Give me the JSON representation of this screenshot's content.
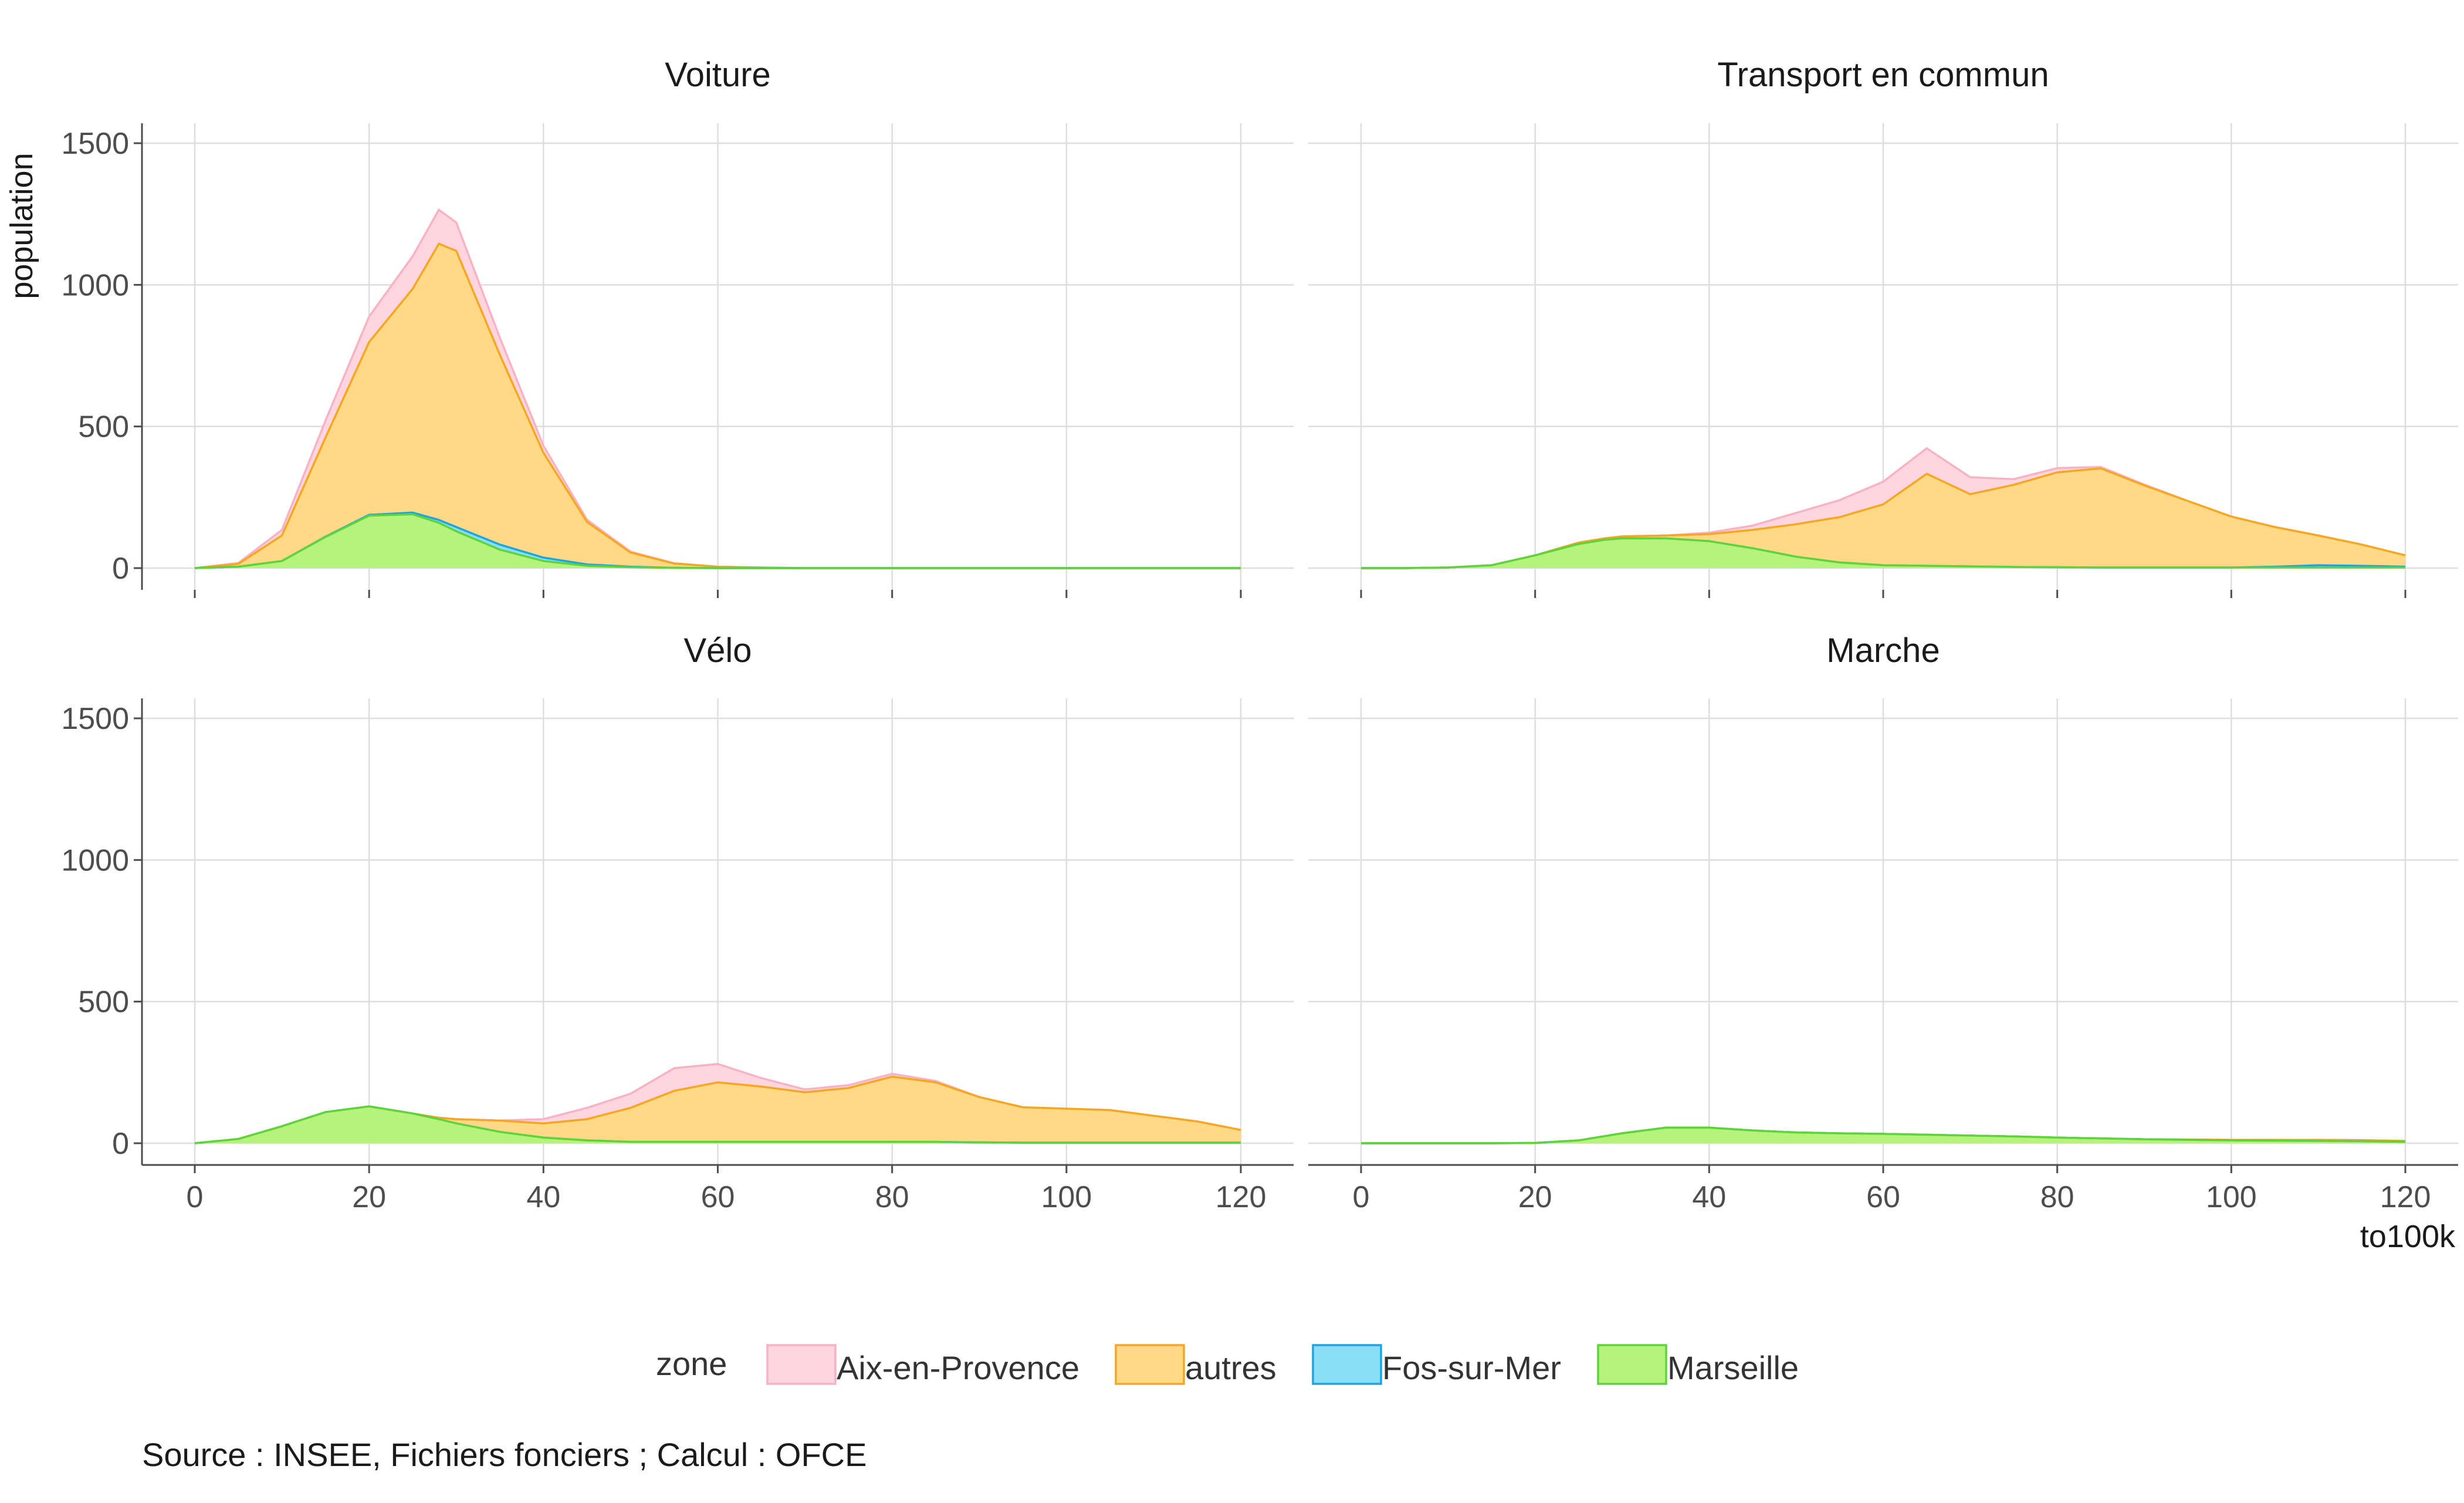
{
  "chart_data": {
    "type": "area",
    "stacked": true,
    "facets": [
      "Voiture",
      "Transport en commun",
      "Vélo",
      "Marche"
    ],
    "xlabel": "to100k",
    "ylabel": "population",
    "xlim": [
      0,
      120
    ],
    "ylim": [
      0,
      1500
    ],
    "xticks": [
      0,
      20,
      40,
      60,
      80,
      100,
      120
    ],
    "yticks": [
      0,
      500,
      1000,
      1500
    ],
    "grid": true,
    "legend": {
      "title": "zone",
      "position": "bottom",
      "entries": [
        {
          "label": "Aix-en-Provence",
          "fill": "#FFD6E0",
          "stroke": "#F7B2C4"
        },
        {
          "label": "autres",
          "fill": "#FFD985",
          "stroke": "#F5A623"
        },
        {
          "label": "Fos-sur-Mer",
          "fill": "#87E0F8",
          "stroke": "#1EA4E0"
        },
        {
          "label": "Marseille",
          "fill": "#B5F37C",
          "stroke": "#5FD43A"
        }
      ]
    },
    "x": [
      0,
      5,
      10,
      15,
      20,
      25,
      28,
      30,
      35,
      40,
      45,
      50,
      55,
      60,
      65,
      70,
      75,
      80,
      85,
      90,
      95,
      100,
      105,
      110,
      115,
      120
    ],
    "panels": [
      {
        "title": "Voiture",
        "series": [
          {
            "name": "Marseille",
            "values": [
              0,
              5,
              25,
              110,
              185,
              190,
              160,
              130,
              65,
              25,
              8,
              3,
              1,
              0,
              0,
              0,
              0,
              0,
              0,
              0,
              0,
              0,
              0,
              0,
              0,
              0
            ]
          },
          {
            "name": "Fos-sur-Mer",
            "values": [
              0,
              0,
              0,
              1,
              3,
              6,
              10,
              15,
              18,
              12,
              5,
              2,
              0,
              0,
              0,
              0,
              0,
              0,
              0,
              0,
              0,
              0,
              0,
              0,
              0,
              0
            ]
          },
          {
            "name": "autres",
            "values": [
              0,
              10,
              90,
              350,
              610,
              790,
              975,
              975,
              670,
              370,
              150,
              50,
              15,
              5,
              2,
              0,
              0,
              0,
              0,
              0,
              0,
              0,
              0,
              0,
              0,
              0
            ]
          },
          {
            "name": "Aix-en-Provence",
            "values": [
              0,
              3,
              20,
              60,
              90,
              115,
              120,
              100,
              60,
              25,
              8,
              3,
              1,
              0,
              0,
              0,
              0,
              0,
              0,
              0,
              0,
              0,
              0,
              0,
              0,
              0
            ]
          }
        ]
      },
      {
        "title": "Transport en commun",
        "series": [
          {
            "name": "Marseille",
            "values": [
              0,
              0,
              2,
              10,
              45,
              85,
              100,
              105,
              105,
              95,
              70,
              40,
              20,
              10,
              8,
              6,
              4,
              3,
              2,
              2,
              2,
              2,
              2,
              2,
              2,
              2
            ]
          },
          {
            "name": "Fos-sur-Mer",
            "values": [
              0,
              0,
              0,
              0,
              0,
              0,
              0,
              0,
              0,
              0,
              0,
              0,
              0,
              0,
              0,
              0,
              0,
              0,
              0,
              0,
              0,
              0,
              3,
              8,
              6,
              3
            ]
          },
          {
            "name": "autres",
            "values": [
              0,
              0,
              0,
              0,
              0,
              5,
              5,
              7,
              10,
              25,
              65,
              115,
              160,
              215,
              325,
              255,
              290,
              335,
              350,
              290,
              235,
              180,
              140,
              105,
              75,
              40
            ]
          },
          {
            "name": "Aix-en-Provence",
            "values": [
              0,
              0,
              0,
              0,
              0,
              0,
              0,
              0,
              0,
              5,
              15,
              40,
              60,
              80,
              90,
              60,
              20,
              15,
              5,
              3,
              0,
              0,
              0,
              0,
              0,
              0
            ]
          }
        ]
      },
      {
        "title": "Vélo",
        "series": [
          {
            "name": "Marseille",
            "values": [
              0,
              15,
              60,
              110,
              130,
              105,
              85,
              70,
              40,
              20,
              10,
              5,
              5,
              5,
              5,
              5,
              5,
              5,
              5,
              3,
              2,
              2,
              2,
              2,
              2,
              2
            ]
          },
          {
            "name": "Fos-sur-Mer",
            "values": [
              0,
              0,
              0,
              0,
              0,
              0,
              0,
              0,
              0,
              0,
              0,
              0,
              0,
              0,
              0,
              0,
              0,
              0,
              0,
              0,
              0,
              0,
              0,
              0,
              0,
              0
            ]
          },
          {
            "name": "autres",
            "values": [
              0,
              0,
              0,
              0,
              0,
              0,
              5,
              15,
              40,
              50,
              75,
              120,
              180,
              210,
              195,
              175,
              190,
              230,
              210,
              160,
              125,
              120,
              115,
              95,
              75,
              45
            ]
          },
          {
            "name": "Aix-en-Provence",
            "values": [
              0,
              0,
              0,
              0,
              0,
              0,
              0,
              0,
              0,
              15,
              40,
              50,
              80,
              65,
              30,
              10,
              10,
              10,
              5,
              0,
              0,
              0,
              0,
              0,
              0,
              0
            ]
          }
        ]
      },
      {
        "title": "Marche",
        "series": [
          {
            "name": "Marseille",
            "values": [
              0,
              0,
              0,
              0,
              1,
              10,
              25,
              35,
              55,
              55,
              45,
              38,
              35,
              33,
              30,
              27,
              24,
              20,
              17,
              14,
              12,
              10,
              9,
              8,
              7,
              5
            ]
          },
          {
            "name": "Fos-sur-Mer",
            "values": [
              0,
              0,
              0,
              0,
              0,
              0,
              0,
              0,
              0,
              0,
              0,
              0,
              0,
              0,
              0,
              0,
              0,
              0,
              0,
              0,
              0,
              0,
              0,
              0,
              0,
              0
            ]
          },
          {
            "name": "autres",
            "values": [
              0,
              0,
              0,
              0,
              0,
              0,
              0,
              0,
              0,
              0,
              0,
              0,
              0,
              0,
              0,
              0,
              0,
              0,
              0,
              0,
              1,
              2,
              3,
              4,
              4,
              3
            ]
          },
          {
            "name": "Aix-en-Provence",
            "values": [
              0,
              0,
              0,
              0,
              0,
              0,
              0,
              0,
              0,
              0,
              0,
              0,
              0,
              0,
              0,
              0,
              0,
              0,
              0,
              0,
              0,
              0,
              0,
              0,
              0,
              0
            ]
          }
        ]
      }
    ],
    "caption": "Source : INSEE, Fichiers fonciers ; Calcul : OFCE"
  }
}
